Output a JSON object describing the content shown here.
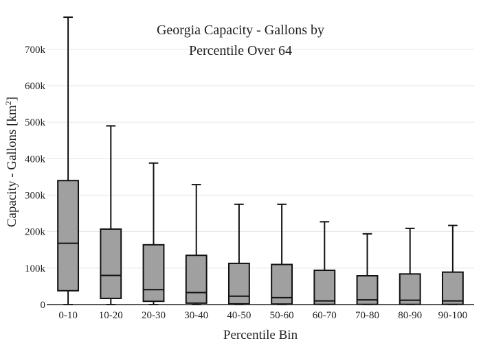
{
  "chart_data": {
    "type": "box",
    "title_lines": [
      "Georgia Capacity - Gallons by",
      "Percentile Over 64"
    ],
    "xlabel": "Percentile Bin",
    "ylabel_main": "Capacity - Gallons  [km",
    "ylabel_sup": "2",
    "ylabel_end": "]",
    "ylim": [
      0,
      790000
    ],
    "yticks": [
      0,
      100000,
      200000,
      300000,
      400000,
      500000,
      600000,
      700000
    ],
    "ytick_labels": [
      "0",
      "100k",
      "200k",
      "300k",
      "400k",
      "500k",
      "600k",
      "700k"
    ],
    "grid": true,
    "categories": [
      "0-10",
      "10-20",
      "20-30",
      "30-40",
      "40-50",
      "50-60",
      "60-70",
      "70-80",
      "80-90",
      "90-100"
    ],
    "boxes": [
      {
        "min": 0,
        "q1": 38000,
        "median": 168000,
        "q3": 340000,
        "max": 788000
      },
      {
        "min": 0,
        "q1": 17000,
        "median": 80000,
        "q3": 207000,
        "max": 490000
      },
      {
        "min": 0,
        "q1": 9000,
        "median": 41000,
        "q3": 164000,
        "max": 388000
      },
      {
        "min": 0,
        "q1": 4000,
        "median": 33000,
        "q3": 135000,
        "max": 329000
      },
      {
        "min": 0,
        "q1": 2000,
        "median": 23000,
        "q3": 113000,
        "max": 275000
      },
      {
        "min": 0,
        "q1": 1500,
        "median": 19000,
        "q3": 110000,
        "max": 275000
      },
      {
        "min": 0,
        "q1": 500,
        "median": 10000,
        "q3": 94000,
        "max": 227000
      },
      {
        "min": 0,
        "q1": 500,
        "median": 13000,
        "q3": 79000,
        "max": 194000
      },
      {
        "min": 0,
        "q1": 500,
        "median": 12000,
        "q3": 84000,
        "max": 209000
      },
      {
        "min": 0,
        "q1": 500,
        "median": 10000,
        "q3": 89000,
        "max": 217000
      }
    ]
  }
}
